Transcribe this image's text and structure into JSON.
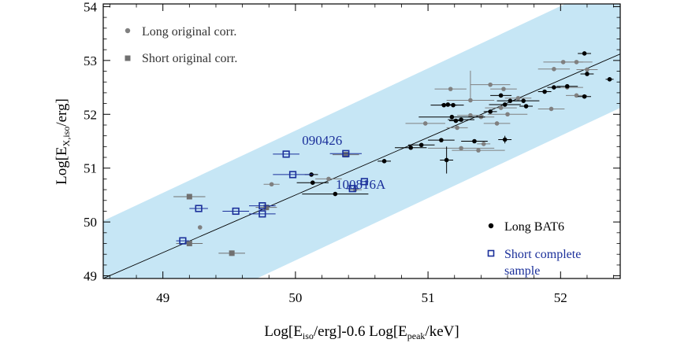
{
  "chart_data": {
    "type": "scatter",
    "xlabel": {
      "pre": "Log[E",
      "sub1": "iso",
      "mid": "/erg]-0.6 Log[E",
      "sub2": "peak",
      "post": "/keV]"
    },
    "ylabel": {
      "pre": "Log[E",
      "sub": "X,iso",
      "post": "/erg]"
    },
    "xlim": [
      48.55,
      52.45
    ],
    "ylim": [
      48.95,
      54.05
    ],
    "xticks": [
      "49",
      "50",
      "51",
      "52"
    ],
    "yticks": [
      "49",
      "50",
      "51",
      "52",
      "53",
      "54"
    ],
    "band": {
      "lower": [
        [
          48.55,
          47.61
        ],
        [
          52.45,
          52.12
        ]
      ],
      "upper": [
        [
          48.55,
          50.02
        ],
        [
          52.45,
          54.53
        ]
      ]
    },
    "fit_line": [
      [
        48.55,
        48.95
      ],
      [
        52.45,
        53.12
      ]
    ],
    "legend_top": [
      {
        "label": "Long original corr.",
        "marker": "circle",
        "color": "#808080"
      },
      {
        "label": "Short original corr.",
        "marker": "square",
        "color": "#707070"
      }
    ],
    "legend_bottom": [
      {
        "label": "Long BAT6",
        "marker": "circle",
        "color": "#000000"
      },
      {
        "label": "Short complete",
        "label2": "sample",
        "marker": "open-square",
        "color": "#1a2f9a"
      }
    ],
    "annotations": [
      {
        "text": "090426",
        "x": 50.05,
        "y": 51.52
      },
      {
        "text": "100816A",
        "x": 50.72,
        "y": 50.7
      }
    ],
    "colors": {
      "band": "#c6e6f5",
      "long_orig": "#808080",
      "short_orig": "#707070",
      "long_bat6": "#000000",
      "short_complete": "#1a2f9a",
      "short_complete_fill": "#5a6dc0"
    },
    "series": [
      {
        "name": "Long original corr.",
        "marker": "circle",
        "points": [
          [
            49.28,
            49.9,
            0,
            0,
            0
          ],
          [
            49.82,
            50.7,
            0.06,
            0,
            0
          ],
          [
            50.25,
            50.8,
            0.1,
            0,
            0
          ],
          [
            50.45,
            50.6,
            0.05,
            0,
            0
          ],
          [
            50.98,
            51.83,
            0.15,
            0,
            0
          ],
          [
            51.25,
            51.37,
            0.25,
            0,
            0
          ],
          [
            51.38,
            51.33,
            0.2,
            0,
            0
          ],
          [
            51.42,
            51.45,
            0.05,
            0,
            0
          ],
          [
            51.17,
            52.47,
            0.12,
            0,
            0
          ],
          [
            51.32,
            52.26,
            0.18,
            0,
            0.55
          ],
          [
            51.47,
            52.55,
            0.15,
            0,
            0
          ],
          [
            51.57,
            52.47,
            0.1,
            0,
            0
          ],
          [
            51.55,
            52.12,
            0.12,
            0,
            0
          ],
          [
            51.6,
            52.0,
            0.15,
            0,
            0
          ],
          [
            51.52,
            51.83,
            0.1,
            0,
            0
          ],
          [
            51.4,
            51.95,
            0.1,
            0,
            0
          ],
          [
            51.32,
            51.98,
            0.1,
            0,
            0
          ],
          [
            51.22,
            51.75,
            0.08,
            0,
            0
          ],
          [
            51.95,
            52.84,
            0.12,
            0,
            0
          ],
          [
            52.02,
            52.97,
            0.15,
            0,
            0
          ],
          [
            52.12,
            52.97,
            0.12,
            0,
            0
          ],
          [
            52.05,
            52.5,
            0.12,
            0,
            0
          ],
          [
            52.12,
            52.35,
            0.08,
            0,
            0
          ],
          [
            51.93,
            52.1,
            0.1,
            0,
            0
          ],
          [
            51.68,
            52.3,
            0.1,
            0,
            0
          ],
          [
            52.2,
            52.83,
            0.08,
            0,
            0
          ]
        ]
      },
      {
        "name": "Short original corr.",
        "marker": "square",
        "points": [
          [
            49.2,
            50.47,
            0.12,
            0,
            0
          ],
          [
            49.2,
            49.6,
            0.1,
            0,
            0
          ],
          [
            49.52,
            49.42,
            0.1,
            0.05,
            0
          ],
          [
            49.78,
            50.27,
            0.08,
            0,
            0
          ],
          [
            50.38,
            51.25,
            0.1,
            0,
            0
          ]
        ]
      },
      {
        "name": "Long BAT6",
        "marker": "circle",
        "points": [
          [
            50.12,
            50.88,
            0.05,
            0,
            0
          ],
          [
            50.13,
            50.73,
            0.12,
            0,
            0
          ],
          [
            50.3,
            50.52,
            0.25,
            0,
            0
          ],
          [
            50.67,
            51.13,
            0.05,
            0,
            0
          ],
          [
            50.87,
            51.38,
            0.12,
            0,
            0
          ],
          [
            50.95,
            51.43,
            0.1,
            0,
            0
          ],
          [
            51.1,
            51.52,
            0.1,
            0,
            0
          ],
          [
            51.14,
            51.15,
            0.05,
            0.25,
            0
          ],
          [
            51.12,
            52.17,
            0.1,
            0,
            0
          ],
          [
            51.15,
            52.18,
            0.05,
            0,
            0
          ],
          [
            51.19,
            52.17,
            0.08,
            0,
            0
          ],
          [
            51.18,
            51.95,
            0.25,
            0,
            0
          ],
          [
            51.21,
            51.88,
            0.05,
            0,
            0
          ],
          [
            51.25,
            51.9,
            0.1,
            0,
            0
          ],
          [
            51.35,
            51.5,
            0.1,
            0,
            0
          ],
          [
            51.47,
            52.05,
            0.05,
            0,
            0
          ],
          [
            51.55,
            52.35,
            0.08,
            0,
            0
          ],
          [
            51.58,
            52.18,
            0.12,
            0,
            0
          ],
          [
            51.62,
            52.25,
            0.1,
            0,
            0
          ],
          [
            51.58,
            51.53,
            0.05,
            0.07,
            0
          ],
          [
            51.72,
            52.25,
            0.12,
            0,
            0
          ],
          [
            51.74,
            52.15,
            0.05,
            0,
            0
          ],
          [
            51.88,
            52.42,
            0.05,
            0,
            0
          ],
          [
            51.95,
            52.5,
            0.05,
            0,
            0
          ],
          [
            52.05,
            52.52,
            0.08,
            0,
            0
          ],
          [
            52.18,
            53.13,
            0.05,
            0,
            0
          ],
          [
            52.2,
            52.75,
            0.05,
            0,
            0
          ],
          [
            52.18,
            52.33,
            0.05,
            0,
            0
          ],
          [
            52.37,
            52.65,
            0.03,
            0,
            0
          ]
        ]
      },
      {
        "name": "Short complete sample",
        "marker": "open-square",
        "points": [
          [
            49.15,
            49.65,
            0.05,
            0,
            0
          ],
          [
            49.27,
            50.25,
            0.07,
            0,
            0
          ],
          [
            49.55,
            50.2,
            0.1,
            0,
            0
          ],
          [
            49.75,
            50.15,
            0.1,
            0,
            0
          ],
          [
            49.75,
            50.3,
            0.1,
            0,
            0
          ],
          [
            49.93,
            51.26,
            0.1,
            0,
            0
          ],
          [
            49.98,
            50.88,
            0.15,
            0,
            0
          ],
          [
            50.38,
            51.27,
            0.12,
            0,
            0
          ],
          [
            50.43,
            50.62,
            0.05,
            0,
            0
          ],
          [
            50.52,
            50.75,
            0.03,
            0,
            0
          ]
        ]
      }
    ]
  }
}
